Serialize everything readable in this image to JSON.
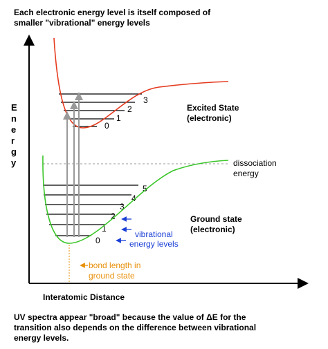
{
  "title": {
    "lines": [
      "Each electronic energy level is itself composed of",
      "smaller \"vibrational\" energy levels"
    ]
  },
  "axes": {
    "y_label": [
      "E",
      "n",
      "e",
      "r",
      "g",
      "y"
    ],
    "x_label": "Interatomic Distance"
  },
  "excited_state": {
    "label": [
      "Excited State",
      "(electronic)"
    ],
    "levels": [
      "0",
      "1",
      "2",
      "3"
    ]
  },
  "ground_state": {
    "label": [
      "Ground state",
      "(electronic)"
    ],
    "levels": [
      "0",
      "1",
      "2",
      "3",
      "4",
      "5"
    ]
  },
  "dissociation": [
    "dissociation",
    "energy"
  ],
  "vibrational_note": [
    "vibrational",
    "energy levels"
  ],
  "bond_length_note": [
    "bond length in",
    "ground state"
  ],
  "caption": {
    "lines": [
      "UV spectra appear \"broad\" because the value of  ΔE for the",
      "transition also depends on the difference between vibrational",
      "energy levels."
    ]
  }
}
